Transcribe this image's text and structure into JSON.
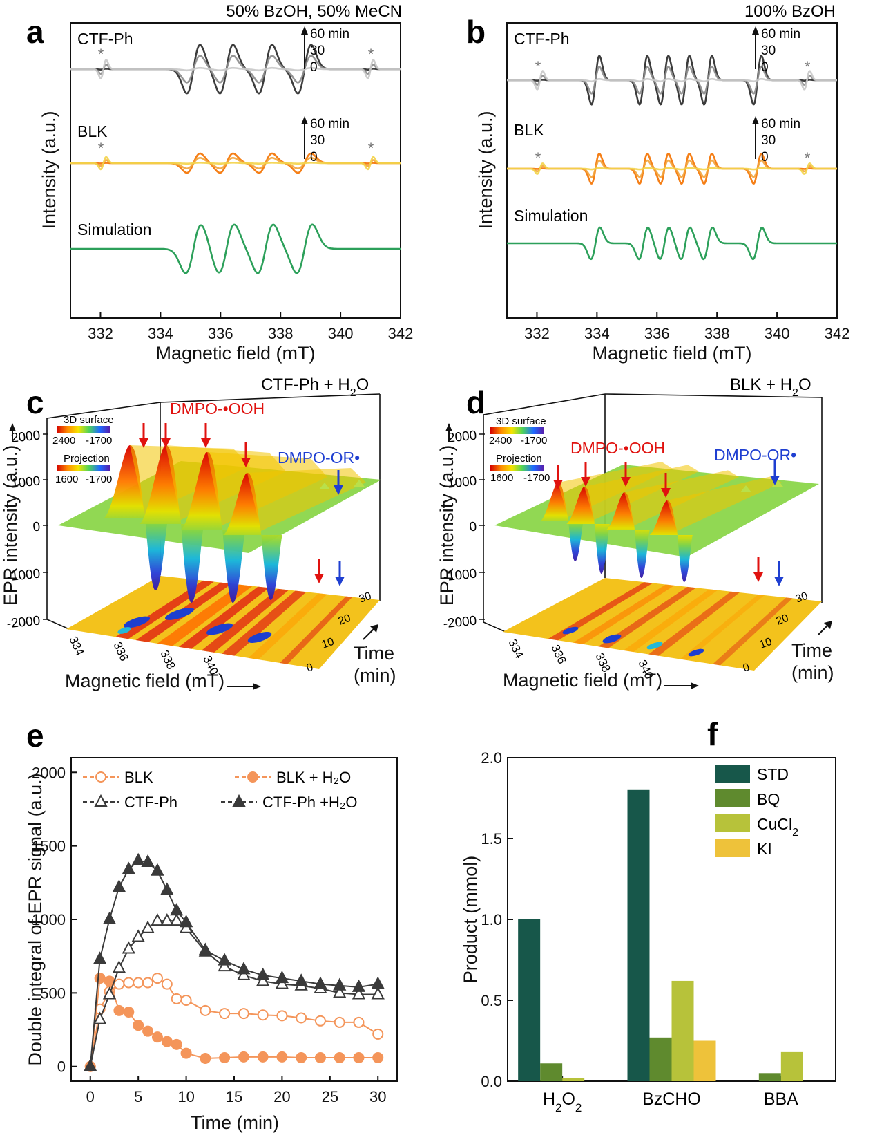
{
  "panels": {
    "a": {
      "letter": "a",
      "condition": "50% BzOH, 50% MeCN"
    },
    "b": {
      "letter": "b",
      "condition": "100% BzOH"
    },
    "c": {
      "letter": "c",
      "condition_main": "CTF-Ph + H",
      "condition_sub": "2",
      "condition_tail": "O"
    },
    "d": {
      "letter": "d",
      "condition_main": "BLK + H",
      "condition_sub": "2",
      "condition_tail": "O"
    },
    "e": {
      "letter": "e"
    },
    "f": {
      "letter": "f"
    }
  },
  "epr_panels": {
    "ylabel": "Intensity (a.u.)",
    "xlabel": "Magnetic field (mT)",
    "traces": [
      "CTF-Ph",
      "BLK",
      "Simulation"
    ],
    "time_labels": [
      "60 min",
      "30",
      "0"
    ],
    "star": "*",
    "xticks": [
      "332",
      "334",
      "336",
      "338",
      "340",
      "342"
    ]
  },
  "surface_panels": {
    "zlabel": "EPR intensity (a.u.)",
    "xlabel": "Magnetic field (mT)",
    "ylabel_1": "Time",
    "ylabel_2": "(min)",
    "colorbar1_title": "3D surface",
    "colorbar1_min": "2400",
    "colorbar1_max": "-1700",
    "colorbar2_title": "Projection",
    "colorbar2_min": "1600",
    "colorbar2_max": "-1700",
    "species_ooh": "DMPO-•OOH",
    "species_or": "DMPO-OR•",
    "zticks": [
      "2000",
      "1000",
      "0",
      "-1000",
      "-2000"
    ],
    "xticks": [
      "334",
      "336",
      "338",
      "340"
    ],
    "tticks": [
      "0",
      "10",
      "20",
      "30"
    ]
  },
  "chart_data": [
    {
      "panel": "a",
      "type": "line",
      "title": "50% BzOH, 50% MeCN",
      "xlabel": "Magnetic field (mT)",
      "ylabel": "Intensity (a.u.)",
      "xlim": [
        331,
        342
      ],
      "series": [
        {
          "name": "CTF-Ph",
          "color": "#3c3c3c",
          "lines": [
            335.1,
            336.2,
            337.5,
            338.8
          ],
          "amp": 1.0,
          "width": 0.22,
          "sat_amp": 0.38
        },
        {
          "name": "BLK",
          "color": "#f57f17",
          "lines": [
            335.1,
            336.2,
            337.5,
            338.8
          ],
          "amp": 0.55,
          "width": 0.22,
          "sat_amp": 0.35
        },
        {
          "name": "Simulation",
          "color": "#2ca05a",
          "lines": [
            335.1,
            336.2,
            337.5,
            338.8
          ],
          "amp": 1.0,
          "width": 0.26
        }
      ],
      "satellite_peaks": [
        332.1,
        341.0
      ]
    },
    {
      "panel": "b",
      "type": "line",
      "title": "100% BzOH",
      "xlabel": "Magnetic field (mT)",
      "ylabel": "Intensity (a.u.)",
      "xlim": [
        331,
        342
      ],
      "series": [
        {
          "name": "CTF-Ph",
          "color": "#3c3c3c",
          "lines": [
            333.95,
            335.55,
            336.25,
            336.95,
            337.7,
            339.35
          ],
          "amp": 1.0,
          "width": 0.13,
          "sat_amp": 0.38
        },
        {
          "name": "BLK",
          "color": "#f57f17",
          "lines": [
            333.95,
            335.55,
            336.25,
            336.95,
            337.7,
            339.35
          ],
          "amp": 0.85,
          "width": 0.13,
          "sat_amp": 0.3
        },
        {
          "name": "Simulation",
          "color": "#2ca05a",
          "lines": [
            333.95,
            335.55,
            336.25,
            336.95,
            337.7,
            339.35
          ],
          "amp": 0.65,
          "width": 0.15
        }
      ],
      "satellite_peaks": [
        332.1,
        341.0
      ]
    },
    {
      "panel": "e",
      "type": "line",
      "xlabel": "Time (min)",
      "ylabel": "Double integral of EPR signal (a.u.)",
      "xlim": [
        -2,
        32
      ],
      "ylim": [
        -100,
        2100
      ],
      "xticks": [
        0,
        5,
        10,
        15,
        20,
        25,
        30
      ],
      "yticks": [
        0,
        500,
        1000,
        1500,
        2000
      ],
      "series": [
        {
          "name": "BLK",
          "color": "#f4955a",
          "marker": "circle",
          "filled": false,
          "x": [
            0,
            1,
            2,
            3,
            4,
            5,
            6,
            7,
            8,
            9,
            10,
            12,
            14,
            16,
            18,
            20,
            22,
            24,
            26,
            28,
            30
          ],
          "y": [
            0,
            390,
            510,
            560,
            570,
            570,
            570,
            600,
            560,
            460,
            450,
            380,
            360,
            360,
            350,
            345,
            330,
            310,
            300,
            300,
            220
          ]
        },
        {
          "name": "BLK + H₂O",
          "color": "#f4955a",
          "marker": "circle",
          "filled": true,
          "x": [
            0,
            1,
            2,
            3,
            4,
            5,
            6,
            7,
            8,
            9,
            10,
            12,
            14,
            16,
            18,
            20,
            22,
            24,
            26,
            28,
            30
          ],
          "y": [
            0,
            600,
            580,
            380,
            370,
            280,
            240,
            200,
            170,
            150,
            90,
            55,
            60,
            65,
            65,
            65,
            60,
            60,
            60,
            60,
            60
          ]
        },
        {
          "name": "CTF-Ph",
          "color": "#3a3a3a",
          "marker": "triangle",
          "filled": false,
          "x": [
            0,
            1,
            2,
            3,
            4,
            5,
            6,
            7,
            8,
            9,
            10,
            12,
            14,
            16,
            18,
            20,
            22,
            24,
            26,
            28,
            30
          ],
          "y": [
            0,
            320,
            490,
            670,
            800,
            880,
            940,
            990,
            990,
            990,
            940,
            780,
            680,
            620,
            580,
            560,
            550,
            530,
            500,
            490,
            490
          ]
        },
        {
          "name": "CTF-Ph +H₂O",
          "color": "#3a3a3a",
          "marker": "triangle",
          "filled": true,
          "x": [
            0,
            1,
            2,
            3,
            4,
            5,
            6,
            7,
            8,
            9,
            10,
            12,
            14,
            16,
            18,
            20,
            22,
            24,
            26,
            28,
            30
          ],
          "y": [
            0,
            730,
            1000,
            1220,
            1340,
            1400,
            1390,
            1330,
            1200,
            1060,
            980,
            790,
            720,
            660,
            620,
            600,
            580,
            560,
            550,
            540,
            560
          ]
        }
      ]
    },
    {
      "panel": "f",
      "type": "bar",
      "xlabel": "",
      "ylabel": "Product (mmol)",
      "ylim": [
        0,
        2.0
      ],
      "yticks": [
        "0.0",
        "0.5",
        "1.0",
        "1.5",
        "2.0"
      ],
      "categories": [
        "H2O2",
        "BzCHO",
        "BBA"
      ],
      "series": [
        {
          "name": "STD",
          "color": "#17574a",
          "values": [
            1.0,
            1.8,
            0.0
          ]
        },
        {
          "name": "BQ",
          "color": "#5f8a2e",
          "values": [
            0.11,
            0.27,
            0.05
          ]
        },
        {
          "name": "CuCl2",
          "color": "#b7c23a",
          "values": [
            0.02,
            0.62,
            0.18
          ]
        },
        {
          "name": "KI",
          "color": "#eec23a",
          "values": [
            0.0,
            0.25,
            0.0
          ]
        }
      ]
    }
  ]
}
